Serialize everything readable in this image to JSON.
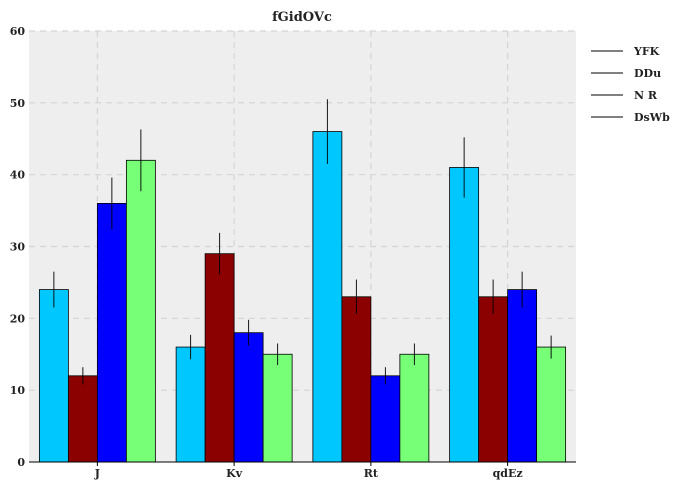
{
  "chart_data": {
    "type": "bar",
    "title": "fGidOVc",
    "xlabel": "",
    "ylabel": "",
    "categories": [
      "J",
      "Kv",
      "Rt",
      "qdEz"
    ],
    "ylim": [
      0,
      60
    ],
    "yticks": [
      0,
      10,
      20,
      30,
      40,
      50,
      60
    ],
    "grid": true,
    "legend_position": "right",
    "series": [
      {
        "name": "YFK",
        "color": "#00c8ff",
        "values": [
          24,
          16,
          46,
          41
        ],
        "errors": [
          2.5,
          1.7,
          4.5,
          4.2
        ]
      },
      {
        "name": "DDu",
        "color": "#8b0000",
        "values": [
          12,
          29,
          23,
          23
        ],
        "errors": [
          1.2,
          2.9,
          2.4,
          2.4
        ]
      },
      {
        "name": "N R",
        "color": "#0000ff",
        "values": [
          36,
          18,
          12,
          24
        ],
        "errors": [
          3.6,
          1.8,
          1.2,
          2.5
        ]
      },
      {
        "name": "DsWb",
        "color": "#77ff77",
        "values": [
          42,
          15,
          15,
          16
        ],
        "errors": [
          4.3,
          1.5,
          1.5,
          1.6
        ]
      }
    ]
  }
}
